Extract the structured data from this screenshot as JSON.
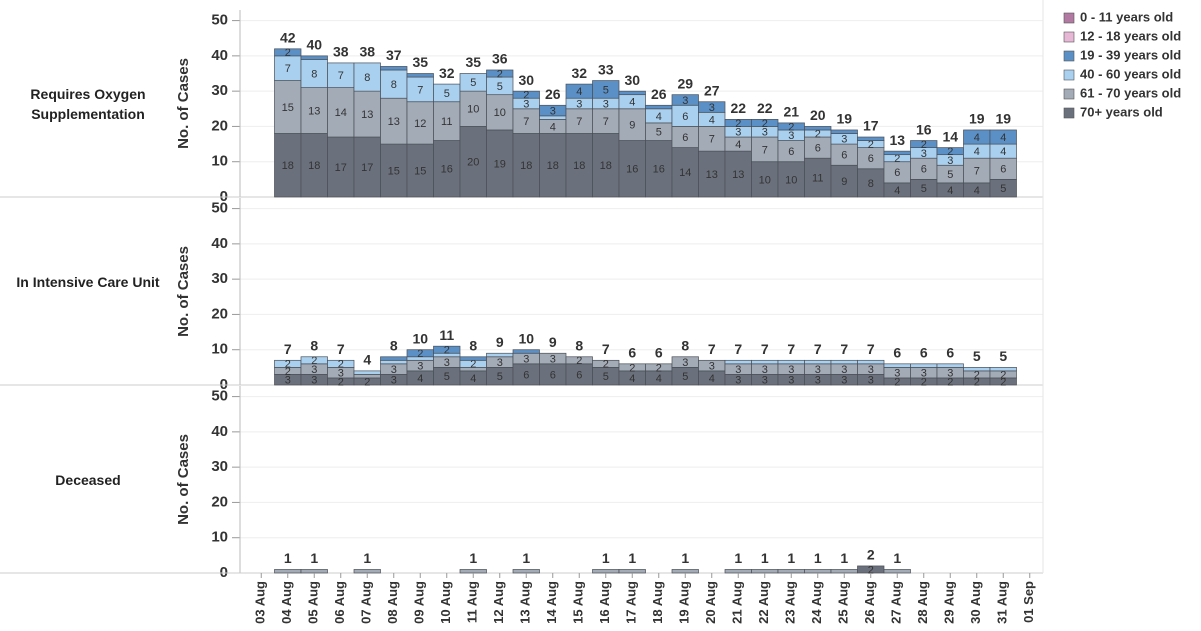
{
  "chart_data": {
    "type": "bar",
    "stacked": true,
    "categories": [
      "03 Aug",
      "04 Aug",
      "05 Aug",
      "06 Aug",
      "07 Aug",
      "08 Aug",
      "09 Aug",
      "10 Aug",
      "11 Aug",
      "12 Aug",
      "13 Aug",
      "14 Aug",
      "15 Aug",
      "16 Aug",
      "17 Aug",
      "18 Aug",
      "19 Aug",
      "20 Aug",
      "21 Aug",
      "22 Aug",
      "23 Aug",
      "24 Aug",
      "25 Aug",
      "26 Aug",
      "27 Aug",
      "28 Aug",
      "29 Aug",
      "30 Aug",
      "31 Aug",
      "01 Sep"
    ],
    "series": [
      {
        "name": "0 - 11 years old",
        "color": "#b27aa3"
      },
      {
        "name": "12 - 18 years old",
        "color": "#e6b8d6"
      },
      {
        "name": "19 - 39 years old",
        "color": "#5b90c6"
      },
      {
        "name": "40 - 60 years old",
        "color": "#a9d0ef"
      },
      {
        "name": "61 - 70 years old",
        "color": "#a3abb6"
      },
      {
        "name": "70+ years old",
        "color": "#6b717c"
      }
    ],
    "grid": true,
    "panels": [
      {
        "label": "Requires Oxygen Supplementation",
        "ylabel": "No. of Cases",
        "ylim": [
          0,
          53
        ],
        "yticks": [
          0,
          10,
          20,
          30,
          40,
          50
        ],
        "values": [
          [
            null,
            null,
            null,
            null,
            null,
            null,
            null,
            null,
            null,
            null,
            null,
            null,
            null,
            null,
            null,
            null,
            null,
            null,
            null,
            null,
            null,
            null,
            null,
            null,
            null,
            null,
            null,
            null,
            null,
            null
          ],
          [
            null,
            null,
            null,
            null,
            null,
            null,
            null,
            null,
            null,
            null,
            null,
            null,
            null,
            null,
            null,
            null,
            null,
            null,
            null,
            null,
            null,
            null,
            null,
            null,
            null,
            null,
            null,
            null,
            null,
            null
          ],
          [
            null,
            2,
            1,
            0,
            0,
            1,
            1,
            0,
            0,
            2,
            2,
            3,
            4,
            5,
            1,
            1,
            3,
            3,
            2,
            2,
            2,
            1,
            1,
            1,
            1,
            2,
            2,
            4,
            4,
            null
          ],
          [
            null,
            7,
            8,
            7,
            8,
            8,
            7,
            5,
            5,
            5,
            3,
            1,
            3,
            3,
            4,
            4,
            6,
            4,
            3,
            3,
            3,
            2,
            3,
            2,
            2,
            3,
            3,
            4,
            4,
            null
          ],
          [
            null,
            15,
            13,
            14,
            13,
            13,
            12,
            11,
            10,
            10,
            7,
            4,
            7,
            7,
            9,
            5,
            6,
            7,
            4,
            7,
            6,
            6,
            6,
            6,
            6,
            6,
            5,
            7,
            6,
            null
          ],
          [
            null,
            18,
            18,
            17,
            17,
            15,
            15,
            16,
            20,
            19,
            18,
            18,
            18,
            18,
            16,
            16,
            14,
            13,
            13,
            10,
            10,
            11,
            9,
            8,
            4,
            5,
            4,
            4,
            5,
            null
          ]
        ],
        "totals": [
          null,
          42,
          40,
          38,
          38,
          37,
          35,
          32,
          35,
          36,
          30,
          26,
          32,
          33,
          30,
          26,
          29,
          27,
          22,
          22,
          21,
          20,
          19,
          17,
          13,
          16,
          14,
          19,
          19,
          null
        ]
      },
      {
        "label": "In Intensive Care Unit",
        "ylabel": "No. of Cases",
        "ylim": [
          0,
          53
        ],
        "yticks": [
          0,
          10,
          20,
          30,
          40,
          50
        ],
        "values": [
          [
            null,
            null,
            null,
            null,
            null,
            null,
            null,
            null,
            null,
            null,
            null,
            null,
            null,
            null,
            null,
            null,
            null,
            null,
            null,
            null,
            null,
            null,
            null,
            null,
            null,
            null,
            null,
            null,
            null,
            null
          ],
          [
            null,
            null,
            null,
            null,
            null,
            null,
            null,
            null,
            null,
            null,
            null,
            null,
            null,
            null,
            null,
            null,
            null,
            null,
            null,
            null,
            null,
            null,
            null,
            null,
            null,
            null,
            null,
            null,
            null,
            null
          ],
          [
            null,
            0,
            0,
            0,
            0,
            1,
            2,
            2,
            1,
            0,
            1,
            0,
            0,
            0,
            0,
            0,
            0,
            0,
            0,
            0,
            0,
            0,
            0,
            0,
            0,
            0,
            0,
            0,
            0,
            null
          ],
          [
            null,
            2,
            2,
            2,
            1,
            1,
            1,
            1,
            2,
            1,
            0,
            0,
            0,
            0,
            0,
            0,
            0,
            0,
            1,
            1,
            1,
            1,
            1,
            1,
            1,
            1,
            1,
            1,
            1,
            null
          ],
          [
            null,
            2,
            3,
            3,
            1,
            3,
            3,
            3,
            1,
            3,
            3,
            3,
            2,
            2,
            2,
            2,
            3,
            3,
            3,
            3,
            3,
            3,
            3,
            3,
            3,
            3,
            3,
            2,
            2,
            null
          ],
          [
            null,
            3,
            3,
            2,
            2,
            3,
            4,
            5,
            4,
            5,
            6,
            6,
            6,
            5,
            4,
            4,
            5,
            4,
            3,
            3,
            3,
            3,
            3,
            3,
            2,
            2,
            2,
            2,
            2,
            null
          ]
        ],
        "totals": [
          null,
          7,
          8,
          7,
          4,
          8,
          10,
          11,
          8,
          9,
          10,
          9,
          8,
          7,
          6,
          6,
          8,
          7,
          7,
          7,
          7,
          7,
          7,
          7,
          6,
          6,
          6,
          5,
          5,
          null
        ]
      },
      {
        "label": "Deceased",
        "ylabel": "No. of Cases",
        "ylim": [
          0,
          53
        ],
        "yticks": [
          0,
          10,
          20,
          30,
          40,
          50
        ],
        "values": [
          [
            null,
            null,
            null,
            null,
            null,
            null,
            null,
            null,
            null,
            null,
            null,
            null,
            null,
            null,
            null,
            null,
            null,
            null,
            null,
            null,
            null,
            null,
            null,
            null,
            null,
            null,
            null,
            null,
            null,
            null
          ],
          [
            null,
            null,
            null,
            null,
            null,
            null,
            null,
            null,
            null,
            null,
            null,
            null,
            null,
            null,
            null,
            null,
            null,
            null,
            null,
            null,
            null,
            null,
            null,
            null,
            null,
            null,
            null,
            null,
            null,
            null
          ],
          [
            null,
            null,
            null,
            null,
            null,
            null,
            null,
            null,
            null,
            null,
            null,
            null,
            null,
            null,
            null,
            null,
            null,
            null,
            null,
            null,
            null,
            null,
            null,
            null,
            null,
            null,
            null,
            null,
            null,
            null
          ],
          [
            null,
            null,
            null,
            null,
            null,
            null,
            null,
            null,
            null,
            null,
            null,
            null,
            null,
            null,
            null,
            null,
            null,
            null,
            null,
            null,
            null,
            null,
            null,
            null,
            null,
            null,
            null,
            null,
            null,
            null
          ],
          [
            null,
            1,
            1,
            null,
            1,
            null,
            null,
            null,
            1,
            null,
            1,
            null,
            null,
            1,
            1,
            null,
            1,
            null,
            1,
            1,
            1,
            1,
            1,
            null,
            1,
            null,
            null,
            null,
            null,
            null
          ],
          [
            null,
            null,
            null,
            null,
            null,
            null,
            null,
            null,
            null,
            null,
            null,
            null,
            null,
            null,
            null,
            null,
            null,
            null,
            null,
            null,
            null,
            null,
            null,
            2,
            null,
            null,
            null,
            null,
            null,
            null
          ]
        ],
        "totals": [
          null,
          1,
          1,
          null,
          1,
          null,
          null,
          null,
          1,
          null,
          1,
          null,
          null,
          1,
          1,
          null,
          1,
          null,
          1,
          1,
          1,
          1,
          1,
          2,
          1,
          null,
          null,
          null,
          null,
          null
        ]
      }
    ]
  }
}
